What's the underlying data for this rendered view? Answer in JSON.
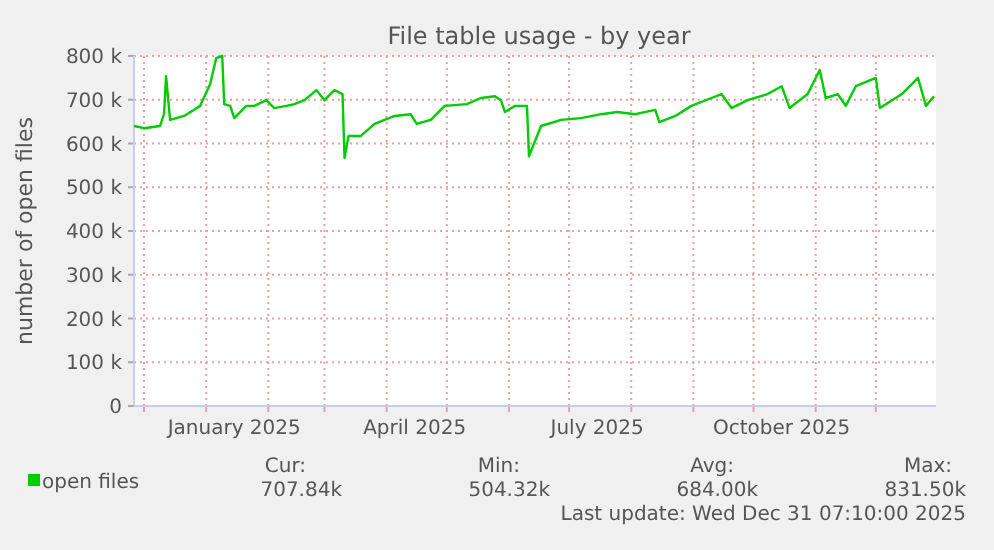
{
  "chart_data": {
    "type": "line",
    "title": "File table usage - by year",
    "ylabel": "number of open files",
    "x": [
      "2024-11-26",
      "2024-12-01",
      "2024-12-09",
      "2024-12-11",
      "2024-12-12",
      "2024-12-14",
      "2024-12-21",
      "2024-12-26",
      "2024-12-29",
      "2025-01-03",
      "2025-01-06",
      "2025-01-09",
      "2025-01-10",
      "2025-01-13",
      "2025-01-15",
      "2025-01-21",
      "2025-01-25",
      "2025-01-31",
      "2025-02-04",
      "2025-02-10",
      "2025-02-14",
      "2025-02-19",
      "2025-02-25",
      "2025-03-01",
      "2025-03-06",
      "2025-03-10",
      "2025-03-11",
      "2025-03-13",
      "2025-03-19",
      "2025-03-26",
      "2025-04-05",
      "2025-04-13",
      "2025-04-16",
      "2025-04-23",
      "2025-04-30",
      "2025-05-11",
      "2025-05-18",
      "2025-05-25",
      "2025-05-28",
      "2025-05-30",
      "2025-06-04",
      "2025-06-10",
      "2025-06-11",
      "2025-06-17",
      "2025-06-27",
      "2025-07-07",
      "2025-07-17",
      "2025-07-25",
      "2025-08-03",
      "2025-08-13",
      "2025-08-15",
      "2025-08-23",
      "2025-08-31",
      "2025-09-10",
      "2025-09-15",
      "2025-09-20",
      "2025-09-28",
      "2025-10-08",
      "2025-10-15",
      "2025-10-19",
      "2025-10-28",
      "2025-11-03",
      "2025-11-06",
      "2025-11-12",
      "2025-11-16",
      "2025-11-21",
      "2025-12-01",
      "2025-12-03",
      "2025-12-14",
      "2025-12-22",
      "2025-12-26",
      "2025-12-30"
    ],
    "series": [
      {
        "name": "open files",
        "color": "#00cc00",
        "values": [
          640000,
          635000,
          640000,
          668000,
          754000,
          654000,
          663000,
          677000,
          686000,
          736000,
          795000,
          800000,
          690000,
          686000,
          658000,
          686000,
          686000,
          699000,
          681000,
          686000,
          690000,
          699000,
          722000,
          699000,
          722000,
          713000,
          567000,
          617000,
          617000,
          645000,
          663000,
          667000,
          645000,
          654000,
          686000,
          690000,
          704000,
          708000,
          699000,
          672000,
          686000,
          686000,
          571000,
          640000,
          654000,
          658000,
          667000,
          672000,
          667000,
          677000,
          649000,
          663000,
          686000,
          704000,
          713000,
          681000,
          699000,
          713000,
          731000,
          681000,
          713000,
          768000,
          704000,
          713000,
          686000,
          731000,
          750000,
          681000,
          713000,
          750000,
          686000,
          708000
        ]
      }
    ],
    "xlim": [
      "2024-11-26",
      "2025-12-31"
    ],
    "xticks": [
      {
        "value": "2024-12-01",
        "label": null
      },
      {
        "value": "2025-01-01",
        "label": null
      },
      {
        "value": "2025-01-15",
        "label": "January 2025"
      },
      {
        "value": "2025-02-01",
        "label": null
      },
      {
        "value": "2025-03-01",
        "label": null
      },
      {
        "value": "2025-04-01",
        "label": null
      },
      {
        "value": "2025-04-15",
        "label": "April 2025"
      },
      {
        "value": "2025-05-01",
        "label": null
      },
      {
        "value": "2025-06-01",
        "label": null
      },
      {
        "value": "2025-07-01",
        "label": null
      },
      {
        "value": "2025-07-15",
        "label": "July 2025"
      },
      {
        "value": "2025-08-01",
        "label": null
      },
      {
        "value": "2025-09-01",
        "label": null
      },
      {
        "value": "2025-10-01",
        "label": null
      },
      {
        "value": "2025-10-15",
        "label": "October 2025"
      },
      {
        "value": "2025-11-01",
        "label": null
      },
      {
        "value": "2025-12-01",
        "label": null
      }
    ],
    "ylim": [
      0,
      800000
    ],
    "yticks": [
      {
        "value": 0,
        "label": "0"
      },
      {
        "value": 100000,
        "label": "100 k"
      },
      {
        "value": 200000,
        "label": "200 k"
      },
      {
        "value": 300000,
        "label": "300 k"
      },
      {
        "value": 400000,
        "label": "400 k"
      },
      {
        "value": 500000,
        "label": "500 k"
      },
      {
        "value": 600000,
        "label": "600 k"
      },
      {
        "value": 700000,
        "label": "700 k"
      },
      {
        "value": 800000,
        "label": "800 k"
      }
    ],
    "grid": true,
    "legend": "bottom left",
    "marker": "none",
    "line_style": "solid",
    "annotations": [
      "Cur:",
      "Min:",
      "Avg:",
      "Max:",
      "707.84k",
      "504.32k",
      "684.00k",
      "831.50k",
      "Last update: Wed Dec 31 07:10:00 2025"
    ]
  }
}
